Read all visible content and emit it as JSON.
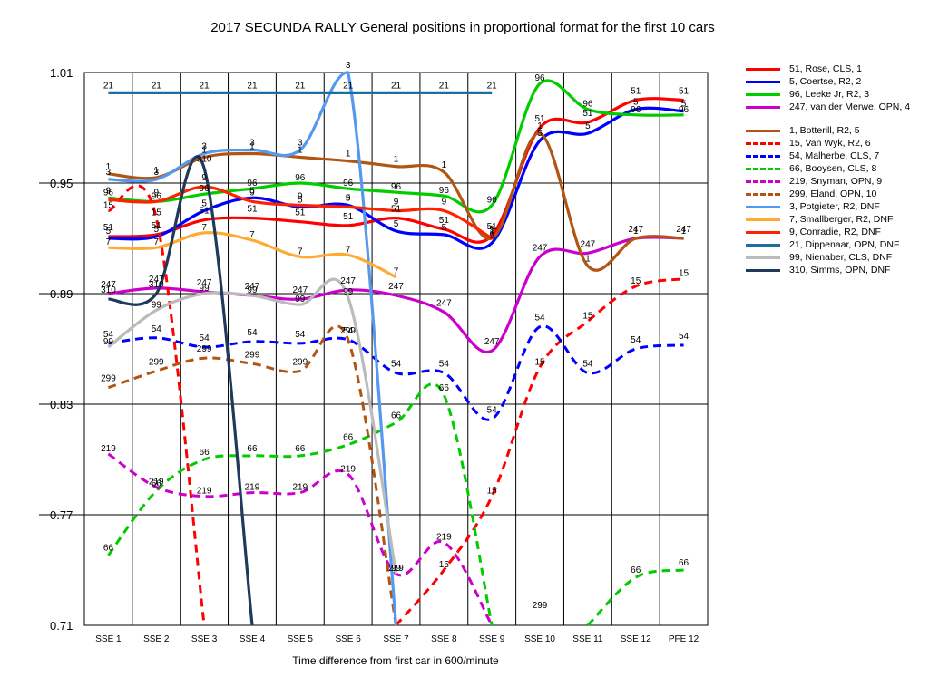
{
  "chart_data": {
    "type": "line",
    "title": "2017 SECUNDA RALLY  General positions in proportional format for the first 10 cars",
    "xlabel": "Time difference from first car in 600/minute",
    "ylabel": "",
    "categories": [
      "SSE 1",
      "SSE 2",
      "SSE 3",
      "SSE 4",
      "SSE 5",
      "SSE 6",
      "SSE 7",
      "SSE 8",
      "SSE 9",
      "SSE 10",
      "SSE 11",
      "SSE 12",
      "PFE 12"
    ],
    "yticks": [
      "0.71",
      "0.77",
      "0.83",
      "0.89",
      "0.95",
      "1.01"
    ],
    "ylim": [
      0.71,
      1.01
    ],
    "grid": "horizontal and vertical",
    "legend_position": "right",
    "series": [
      {
        "name": "51, Rose, CLS, 1",
        "label": "51",
        "color": "#ff0000",
        "dash": false,
        "values": [
          0.921,
          0.922,
          0.93,
          0.931,
          0.929,
          0.927,
          0.931,
          0.925,
          0.9215,
          0.98,
          0.983,
          0.995,
          0.995
        ]
      },
      {
        "name": "5, Coertse, R2, 2",
        "label": "5",
        "color": "#0000ff",
        "dash": false,
        "values": [
          0.92,
          0.921,
          0.935,
          0.942,
          0.937,
          0.938,
          0.924,
          0.922,
          0.9175,
          0.973,
          0.977,
          0.99,
          0.989
        ]
      },
      {
        "name": "96, Leeke Jr, R2, 3",
        "label": "96",
        "color": "#00cc00",
        "dash": false,
        "values": [
          0.942,
          0.94,
          0.944,
          0.947,
          0.95,
          0.947,
          0.945,
          0.943,
          0.938,
          1.004,
          0.99,
          0.987,
          0.987
        ]
      },
      {
        "name": "247, van der Merwe, OPN, 4",
        "label": "247",
        "color": "#cc00cc",
        "dash": false,
        "values": [
          0.89,
          0.893,
          0.891,
          0.889,
          0.887,
          0.892,
          0.889,
          0.88,
          0.859,
          0.91,
          0.912,
          0.92,
          0.92
        ]
      },
      {
        "name": "1, Botterill, R2, 5",
        "label": "1",
        "color": "#b25513",
        "dash": false,
        "values": [
          0.955,
          0.953,
          0.964,
          0.966,
          0.964,
          0.962,
          0.959,
          0.956,
          0.92,
          0.977,
          0.905,
          0.92,
          0.92
        ]
      },
      {
        "name": "15, Van Wyk, R2, 6",
        "label": "15",
        "color": "#ff0000",
        "dash": true,
        "values": [
          0.935,
          0.931,
          0.71,
          null,
          null,
          null,
          0.71,
          0.74,
          0.78,
          0.85,
          0.875,
          0.894,
          0.898
        ]
      },
      {
        "name": "54, Malherbe, CLS, 7",
        "label": "54",
        "color": "#0000ff",
        "dash": true,
        "values": [
          0.863,
          0.866,
          0.861,
          0.864,
          0.863,
          0.865,
          0.847,
          0.847,
          0.822,
          0.872,
          0.847,
          0.86,
          0.862
        ]
      },
      {
        "name": "66, Booysen, CLS, 8",
        "label": "66",
        "color": "#00cc00",
        "dash": true,
        "values": [
          0.748,
          0.783,
          0.8,
          0.802,
          0.802,
          0.808,
          0.82,
          0.835,
          0.71,
          null,
          0.71,
          0.736,
          0.74
        ]
      },
      {
        "name": "219, Snyman, OPN, 9",
        "label": "219",
        "color": "#cc00cc",
        "dash": true,
        "values": [
          0.803,
          0.785,
          0.78,
          0.782,
          0.782,
          0.792,
          0.738,
          0.755,
          0.71,
          null,
          null,
          null,
          null
        ]
      },
      {
        "name": "299, Eland, OPN, 10",
        "label": "299",
        "color": "#b25513",
        "dash": true,
        "values": [
          0.839,
          0.848,
          0.855,
          0.852,
          0.848,
          0.865,
          0.71,
          null,
          null,
          0.716,
          null,
          null,
          null
        ]
      },
      {
        "name": "3, Potgieter, R2, DNF",
        "label": "3",
        "color": "#5599ee",
        "dash": false,
        "values": [
          0.952,
          0.952,
          0.966,
          0.968,
          0.968,
          1.01,
          0.71,
          null,
          null,
          null,
          null,
          null,
          null
        ]
      },
      {
        "name": "7, Smallberger, R2, DNF",
        "label": "7",
        "color": "#ffaa33",
        "dash": false,
        "values": [
          0.915,
          0.915,
          0.923,
          0.919,
          0.91,
          0.911,
          0.899,
          null,
          null,
          null,
          null,
          null,
          null
        ]
      },
      {
        "name": "9, Conradie, R2, DNF",
        "label": "9",
        "color": "#ff2200",
        "dash": false,
        "values": [
          0.941,
          0.94,
          0.948,
          0.94,
          0.938,
          0.937,
          0.935,
          0.935,
          0.92,
          null,
          null,
          null,
          null
        ]
      },
      {
        "name": "21, Dippenaar, OPN, DNF",
        "label": "21",
        "color": "#1a6fa0",
        "dash": false,
        "values": [
          0.999,
          0.999,
          0.999,
          0.999,
          0.999,
          0.999,
          0.999,
          0.999,
          0.999,
          null,
          null,
          null,
          null
        ]
      },
      {
        "name": "99, Nienaber, CLS, DNF",
        "label": "99",
        "color": "#bbbbbb",
        "dash": false,
        "values": [
          0.861,
          0.881,
          0.89,
          0.889,
          0.884,
          0.888,
          0.738,
          null,
          null,
          null,
          null,
          null,
          null
        ]
      },
      {
        "name": "310, Simms, OPN, DNF",
        "label": "310",
        "color": "#1f3a5a",
        "dash": false,
        "values": [
          0.887,
          0.89,
          0.958,
          0.71,
          null,
          null,
          null,
          null,
          null,
          null,
          null,
          null,
          null
        ]
      }
    ]
  }
}
